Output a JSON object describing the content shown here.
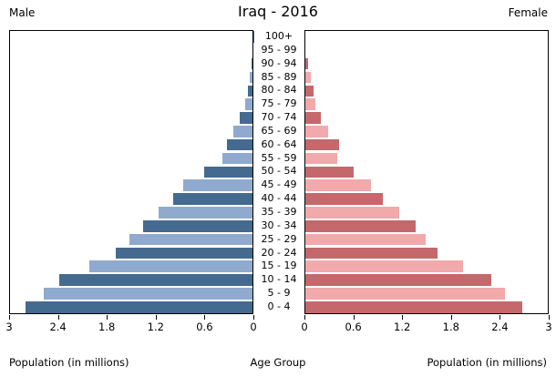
{
  "title": "Iraq - 2016",
  "header": {
    "male_label": "Male",
    "female_label": "Female"
  },
  "axis": {
    "male_tick_labels": [
      "3",
      "2.4",
      "1.8",
      "1.2",
      "0.6",
      "0"
    ],
    "female_tick_labels": [
      "0",
      "0.6",
      "1.2",
      "1.8",
      "2.4",
      "3"
    ],
    "male_xlabel": "Population (in millions)",
    "center_xlabel": "Age Group",
    "female_xlabel": "Population (in millions)",
    "xmax_millions": 3
  },
  "colors": {
    "male_dark": "#456A8F",
    "male_light": "#8FAACE",
    "female_dark": "#C4686C",
    "female_light": "#F2A9AC",
    "axis_line": "#000000",
    "background": "#FFFFFF"
  },
  "chart_data": {
    "type": "bar",
    "subtype": "population_pyramid",
    "title": "Iraq - 2016",
    "orientation": "horizontal",
    "units": "millions",
    "xlabel": "Population (in millions)",
    "ylabel": "Age Group",
    "xlim": [
      0,
      3
    ],
    "grid": false,
    "legend_position": "none",
    "categories_top_to_bottom": [
      "100+",
      "95 - 99",
      "90 - 94",
      "85 - 89",
      "80 - 84",
      "75 - 79",
      "70 - 74",
      "65 - 69",
      "60 - 64",
      "55 - 59",
      "50 - 54",
      "45 - 49",
      "40 - 44",
      "35 - 39",
      "30 - 34",
      "25 - 29",
      "20 - 24",
      "15 - 19",
      "10 - 14",
      "5 - 9",
      "0 - 4"
    ],
    "series": [
      {
        "name": "Male",
        "side": "left",
        "values_top_to_bottom": [
          0.005,
          0.01,
          0.02,
          0.04,
          0.07,
          0.1,
          0.17,
          0.25,
          0.33,
          0.38,
          0.6,
          0.86,
          0.99,
          1.16,
          1.36,
          1.52,
          1.69,
          2.02,
          2.38,
          2.58,
          2.8
        ]
      },
      {
        "name": "Female",
        "side": "right",
        "values_top_to_bottom": [
          0.01,
          0.01,
          0.05,
          0.08,
          0.11,
          0.13,
          0.2,
          0.29,
          0.42,
          0.4,
          0.6,
          0.82,
          0.96,
          1.16,
          1.37,
          1.49,
          1.63,
          1.95,
          2.29,
          2.46,
          2.68
        ]
      }
    ]
  }
}
